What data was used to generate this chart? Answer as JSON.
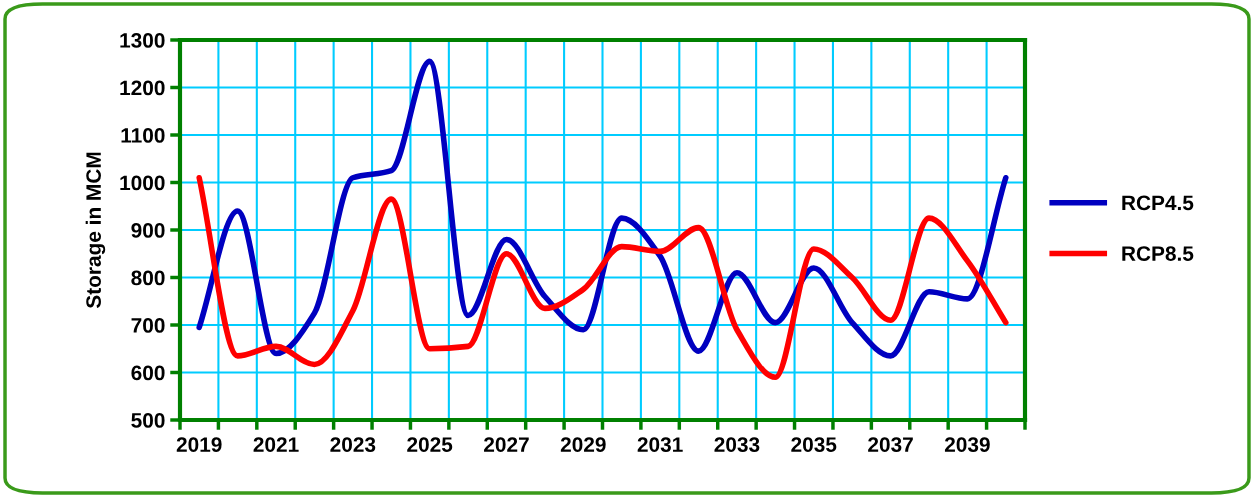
{
  "chart_data": {
    "type": "line",
    "ylabel": "Storage in MCM",
    "categories": [
      "2019",
      null,
      "2021",
      null,
      "2023",
      null,
      "2025",
      null,
      "2027",
      null,
      "2029",
      null,
      "2031",
      null,
      "2033",
      null,
      "2035",
      null,
      "2037",
      null,
      "2039",
      null
    ],
    "series": [
      {
        "name": "RCP4.5",
        "color": "#0000c0",
        "values": [
          695,
          940,
          640,
          725,
          1010,
          1025,
          1255,
          720,
          880,
          760,
          690,
          925,
          845,
          645,
          810,
          705,
          820,
          705,
          635,
          770,
          755,
          1010
        ]
      },
      {
        "name": "RCP8.5",
        "color": "#ff0000",
        "values": [
          1010,
          635,
          655,
          617,
          730,
          965,
          650,
          655,
          850,
          735,
          775,
          865,
          855,
          905,
          690,
          590,
          860,
          800,
          710,
          925,
          835,
          705
        ]
      }
    ],
    "ylim": [
      500,
      1300
    ],
    "yticks": [
      500,
      600,
      700,
      800,
      900,
      1000,
      1100,
      1200,
      1300
    ],
    "grid": true,
    "legend": "right",
    "marker": "none",
    "line_style": "solid"
  }
}
